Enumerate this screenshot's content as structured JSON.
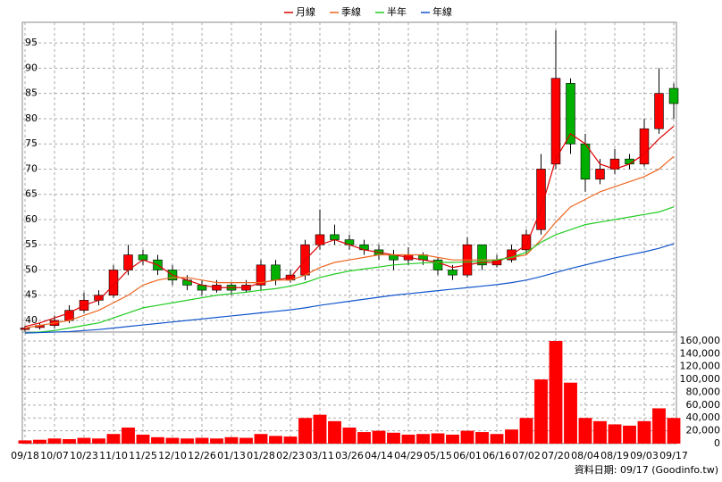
{
  "chart_data": [
    {
      "type": "candlestick",
      "categories": [
        "09/18",
        null,
        "10/07",
        null,
        "10/23",
        null,
        "11/10",
        null,
        "11/25",
        null,
        "12/10",
        null,
        "12/26",
        null,
        "01/13",
        null,
        "01/28",
        null,
        "02/23",
        null,
        "03/11",
        null,
        "03/26",
        null,
        "04/14",
        null,
        "04/29",
        null,
        "05/15",
        null,
        "06/01",
        null,
        "06/16",
        null,
        "07/02",
        null,
        "07/20",
        null,
        "08/04",
        null,
        "08/19",
        null,
        "09/03",
        null,
        "09/17"
      ],
      "open": [
        38.2,
        38.6,
        39,
        40,
        42,
        44,
        45,
        50,
        53,
        52,
        50,
        48,
        47,
        46,
        47,
        46,
        47,
        51,
        48,
        49,
        55,
        57,
        56,
        55,
        54,
        53,
        52,
        53,
        52,
        50,
        49,
        55,
        51,
        52,
        54,
        58,
        71,
        87,
        75,
        68,
        70,
        72,
        71,
        78,
        86
      ],
      "high": [
        39,
        39.5,
        41,
        43,
        45.5,
        46,
        51,
        55,
        54,
        53,
        51,
        49,
        48,
        48,
        47.5,
        48,
        52,
        52,
        50,
        56,
        62,
        59,
        57,
        56,
        55,
        54,
        54.5,
        53.5,
        52.5,
        51,
        56.5,
        55,
        53,
        55,
        58,
        73,
        97.5,
        88,
        77,
        72,
        74,
        73,
        80,
        90,
        87
      ],
      "low": [
        37.8,
        38.2,
        38.5,
        39.5,
        41.5,
        43,
        44.5,
        49,
        51,
        49,
        47,
        46,
        45,
        45.5,
        45,
        45.5,
        46,
        47,
        47.5,
        48,
        54,
        55,
        54,
        53,
        52,
        50,
        51,
        51,
        49,
        48,
        48.5,
        50,
        50.5,
        51.5,
        53,
        57,
        70,
        73,
        65.5,
        67,
        69,
        70,
        70.5,
        77,
        80
      ],
      "close": [
        38.5,
        39,
        40,
        42,
        44,
        45,
        50,
        53,
        52,
        50,
        48,
        47,
        46,
        47,
        46,
        47,
        51,
        48,
        49,
        55,
        57,
        56,
        55,
        54,
        53,
        52,
        53,
        52,
        50,
        49,
        55,
        51,
        52,
        54,
        57,
        70,
        88,
        75,
        68,
        70,
        72,
        71,
        78,
        85,
        83
      ],
      "up_color": "#ff0000",
      "down_color": "#00b000",
      "series": [
        {
          "name": "月線",
          "color": "#dd0000",
          "values": [
            38.8,
            39.5,
            40.5,
            41.5,
            43,
            44,
            47,
            50,
            52,
            51,
            49,
            48,
            47,
            46.5,
            46.5,
            46.5,
            47.5,
            48,
            48.5,
            52,
            55,
            56,
            55,
            54,
            53.5,
            53,
            52.5,
            52,
            51.5,
            50.5,
            51,
            51.5,
            51.5,
            53,
            55,
            62,
            72,
            77,
            75,
            71,
            70,
            71,
            73,
            76,
            78.5
          ]
        },
        {
          "name": "季線",
          "color": "#ee6622",
          "values": [
            38.5,
            39,
            39.5,
            40,
            41,
            42,
            43.5,
            45,
            47,
            48,
            48.5,
            48.5,
            48,
            47.5,
            47.5,
            47.5,
            47.5,
            48,
            48,
            49,
            50.5,
            51.5,
            52,
            52.5,
            53,
            53,
            53,
            53,
            52.5,
            52,
            52,
            52,
            52,
            52.5,
            53,
            56,
            59.5,
            62.5,
            64,
            65.5,
            66.5,
            67.5,
            68.5,
            70,
            72.5
          ]
        },
        {
          "name": "半年",
          "color": "#22cc22",
          "values": [
            37.5,
            37.7,
            38,
            38.5,
            39,
            39.5,
            40.5,
            41.5,
            42.5,
            43,
            43.5,
            44,
            44.5,
            45,
            45.3,
            45.6,
            46,
            46.3,
            46.8,
            47.5,
            48.5,
            49.2,
            49.8,
            50.2,
            50.6,
            51,
            51.2,
            51.4,
            51.5,
            51.5,
            51.6,
            51.7,
            52,
            52.5,
            53.5,
            55.5,
            57,
            58,
            59,
            59.5,
            60,
            60.5,
            61,
            61.5,
            62.5
          ]
        },
        {
          "name": "年線",
          "color": "#1155cc",
          "values": [
            37.5,
            37.6,
            37.7,
            37.8,
            38,
            38.2,
            38.5,
            38.8,
            39.1,
            39.4,
            39.7,
            40,
            40.3,
            40.6,
            40.9,
            41.2,
            41.5,
            41.8,
            42.1,
            42.5,
            43,
            43.4,
            43.8,
            44.2,
            44.6,
            45,
            45.3,
            45.6,
            45.9,
            46.2,
            46.5,
            46.8,
            47.1,
            47.5,
            48,
            48.7,
            49.5,
            50.3,
            51,
            51.7,
            52.4,
            53,
            53.6,
            54.3,
            55.2
          ]
        }
      ],
      "ylim": [
        37.7,
        99.1
      ],
      "yticks": [
        40,
        45,
        50,
        55,
        60,
        65,
        70,
        75,
        80,
        85,
        90,
        95
      ],
      "grid": true
    },
    {
      "type": "bar",
      "color": "#ff0000",
      "values": [
        5000,
        6000,
        8000,
        7000,
        9000,
        8000,
        15000,
        25000,
        14000,
        10000,
        9000,
        8000,
        9000,
        8000,
        10000,
        9000,
        15000,
        12000,
        11000,
        40000,
        45000,
        35000,
        25000,
        18000,
        20000,
        17000,
        14000,
        15000,
        16000,
        14000,
        20000,
        18000,
        15000,
        22000,
        40000,
        100000,
        160000,
        95000,
        40000,
        35000,
        30000,
        28000,
        35000,
        55000,
        40000
      ],
      "ylim": [
        0,
        173900
      ],
      "yticks": [
        0,
        {
          "value": 20000,
          "label": "20,000"
        },
        {
          "value": 40000,
          "label": "40,000"
        },
        {
          "value": 60000,
          "label": "60,000"
        },
        {
          "value": 80000,
          "label": "80,000"
        },
        {
          "value": 100000,
          "label": "100,000"
        },
        {
          "value": 120000,
          "label": "120,000"
        },
        {
          "value": 140000,
          "label": "140,000"
        },
        {
          "value": 160000,
          "label": "160,000"
        }
      ],
      "grid": true,
      "source": "資料日期: 09/17  (Goodinfo.tw)"
    }
  ]
}
